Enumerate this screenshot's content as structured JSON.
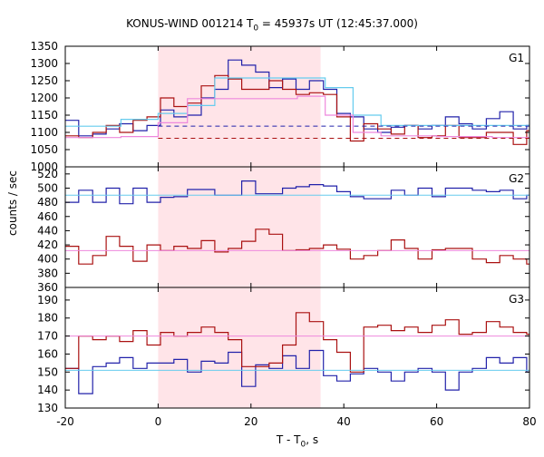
{
  "title": {
    "text_main": "KONUS-WIND 001214 T",
    "text_sub": "0",
    "text_rest": " = 45937s UT (12:45:37.000)"
  },
  "xlabel": {
    "main": "T - T",
    "sub": "0",
    "rest": ", s"
  },
  "ylabel": "counts / sec",
  "colors": {
    "blue": "#2222aa",
    "red": "#aa1111",
    "cyan": "#66ccee",
    "pink": "#ee88dd",
    "shade": "#ffe4e8"
  },
  "chart_data": {
    "type": "line",
    "x_range": [
      -20,
      80
    ],
    "x_ticks": [
      -20,
      0,
      20,
      40,
      60,
      80
    ],
    "shaded_interval": [
      0,
      35
    ],
    "panels": [
      {
        "label": "G1",
        "ylim": [
          1000,
          1350
        ],
        "y_ticks": [
          1000,
          1050,
          1100,
          1150,
          1200,
          1250,
          1300,
          1350
        ],
        "series": [
          {
            "style": "blue-step",
            "x": [
              -20,
              -17.1,
              -14.1,
              -11.2,
              -8.3,
              -5.4,
              -2.4,
              0.5,
              3.4,
              6.3,
              9.3,
              12.2,
              15.1,
              18.0,
              21.0,
              23.9,
              26.8,
              29.7,
              32.6,
              35.6,
              38.5,
              41.4,
              44.3,
              47.3,
              50.2,
              53.1,
              56.0,
              59.0,
              61.9,
              64.8,
              67.7,
              70.7,
              73.6,
              76.5,
              79.4
            ],
            "y": [
              1135,
              1090,
              1095,
              1110,
              1125,
              1105,
              1120,
              1165,
              1145,
              1150,
              1200,
              1225,
              1310,
              1295,
              1275,
              1230,
              1255,
              1225,
              1250,
              1225,
              1155,
              1145,
              1110,
              1100,
              1115,
              1120,
              1110,
              1120,
              1145,
              1125,
              1110,
              1140,
              1160,
              1110,
              1120
            ]
          },
          {
            "style": "red-step",
            "x": [
              -20,
              -17.1,
              -14.1,
              -11.2,
              -8.3,
              -5.4,
              -2.4,
              0.5,
              3.4,
              6.3,
              9.3,
              12.2,
              15.1,
              18.0,
              21.0,
              23.9,
              26.8,
              29.7,
              32.6,
              35.6,
              38.5,
              41.4,
              44.3,
              47.3,
              50.2,
              53.1,
              56.0,
              59.0,
              61.9,
              64.8,
              67.7,
              70.7,
              73.6,
              76.5,
              79.4
            ],
            "y": [
              1090,
              1085,
              1100,
              1120,
              1100,
              1135,
              1145,
              1200,
              1175,
              1185,
              1235,
              1265,
              1255,
              1225,
              1225,
              1250,
              1225,
              1210,
              1215,
              1210,
              1145,
              1075,
              1125,
              1110,
              1095,
              1120,
              1085,
              1090,
              1120,
              1085,
              1085,
              1100,
              1100,
              1065,
              1105
            ]
          },
          {
            "style": "cyan-step",
            "x": [
              -20,
              -12,
              -8,
              0,
              6.3,
              12.2,
              21.0,
              30,
              36,
              42,
              48,
              60,
              72,
              80
            ],
            "y": [
              1118,
              1118,
              1138,
              1155,
              1178,
              1258,
              1258,
              1258,
              1230,
              1150,
              1120,
              1120,
              1120,
              1120
            ]
          },
          {
            "style": "pink-step",
            "x": [
              -20,
              -12,
              -8,
              0,
              6.3,
              12.2,
              21.0,
              30,
              36,
              42,
              48,
              60,
              72,
              80
            ],
            "y": [
              1085,
              1085,
              1088,
              1128,
              1198,
              1198,
              1198,
              1205,
              1150,
              1100,
              1090,
              1088,
              1085,
              1085
            ]
          },
          {
            "style": "blue-dashed",
            "y_level": 1118,
            "x_from": 0,
            "x_to": 80
          },
          {
            "style": "red-dashed",
            "y_level": 1083,
            "x_from": 0,
            "x_to": 80
          }
        ]
      },
      {
        "label": "G2",
        "ylim": [
          360,
          530
        ],
        "y_ticks": [
          360,
          380,
          400,
          420,
          440,
          460,
          480,
          500,
          520
        ],
        "series": [
          {
            "style": "blue-step",
            "x": [
              -20,
              -17.1,
              -14.1,
              -11.2,
              -8.3,
              -5.4,
              -2.4,
              0.5,
              3.4,
              6.3,
              9.3,
              12.2,
              15.1,
              18.0,
              21.0,
              23.9,
              26.8,
              29.7,
              32.6,
              35.6,
              38.5,
              41.4,
              44.3,
              47.3,
              50.2,
              53.1,
              56.0,
              59.0,
              61.9,
              64.8,
              67.7,
              70.7,
              73.6,
              76.5,
              79.4
            ],
            "y": [
              480,
              497,
              480,
              500,
              478,
              500,
              480,
              487,
              488,
              498,
              498,
              490,
              490,
              510,
              492,
              492,
              500,
              502,
              505,
              503,
              495,
              488,
              485,
              485,
              497,
              490,
              500,
              488,
              500,
              500,
              497,
              495,
              497,
              485,
              490
            ]
          },
          {
            "style": "red-step",
            "x": [
              -20,
              -17.1,
              -14.1,
              -11.2,
              -8.3,
              -5.4,
              -2.4,
              0.5,
              3.4,
              6.3,
              9.3,
              12.2,
              15.1,
              18.0,
              21.0,
              23.9,
              26.8,
              29.7,
              32.6,
              35.6,
              38.5,
              41.4,
              44.3,
              47.3,
              50.2,
              53.1,
              56.0,
              59.0,
              61.9,
              64.8,
              67.7,
              70.7,
              73.6,
              76.5,
              79.4
            ],
            "y": [
              418,
              393,
              405,
              432,
              418,
              397,
              420,
              412,
              418,
              415,
              426,
              410,
              415,
              425,
              442,
              435,
              412,
              413,
              415,
              420,
              414,
              400,
              405,
              412,
              427,
              415,
              400,
              413,
              415,
              415,
              400,
              395,
              405,
              400,
              393
            ]
          },
          {
            "style": "cyan-flat",
            "y_level": 490,
            "x_from": -20,
            "x_to": 80
          },
          {
            "style": "pink-flat",
            "y_level": 412,
            "x_from": -20,
            "x_to": 80
          }
        ]
      },
      {
        "label": "G3",
        "ylim": [
          130,
          197
        ],
        "y_ticks": [
          130,
          140,
          150,
          160,
          170,
          180,
          190
        ],
        "series": [
          {
            "style": "blue-step",
            "x": [
              -20,
              -17.1,
              -14.1,
              -11.2,
              -8.3,
              -5.4,
              -2.4,
              0.5,
              3.4,
              6.3,
              9.3,
              12.2,
              15.1,
              18.0,
              21.0,
              23.9,
              26.8,
              29.7,
              32.6,
              35.6,
              38.5,
              41.4,
              44.3,
              47.3,
              50.2,
              53.1,
              56.0,
              59.0,
              61.9,
              64.8,
              67.7,
              70.7,
              73.6,
              76.5,
              79.4
            ],
            "y": [
              152,
              138,
              153,
              155,
              158,
              152,
              155,
              155,
              157,
              150,
              156,
              155,
              161,
              142,
              154,
              152,
              159,
              152,
              162,
              148,
              145,
              149,
              152,
              150,
              145,
              150,
              152,
              150,
              140,
              150,
              152,
              158,
              155,
              158,
              150
            ]
          },
          {
            "style": "red-step",
            "x": [
              -20,
              -17.1,
              -14.1,
              -11.2,
              -8.3,
              -5.4,
              -2.4,
              0.5,
              3.4,
              6.3,
              9.3,
              12.2,
              15.1,
              18.0,
              21.0,
              23.9,
              26.8,
              29.7,
              32.6,
              35.6,
              38.5,
              41.4,
              44.3,
              47.3,
              50.2,
              53.1,
              56.0,
              59.0,
              61.9,
              64.8,
              67.7,
              70.7,
              73.6,
              76.5,
              79.4
            ],
            "y": [
              152,
              170,
              168,
              170,
              167,
              173,
              165,
              172,
              170,
              172,
              175,
              172,
              168,
              153,
              153,
              155,
              165,
              183,
              178,
              168,
              161,
              150,
              175,
              176,
              173,
              175,
              172,
              176,
              179,
              171,
              172,
              178,
              175,
              172,
              171
            ]
          },
          {
            "style": "cyan-flat",
            "y_level": 151,
            "x_from": -20,
            "x_to": 80
          },
          {
            "style": "pink-flat",
            "y_level": 170,
            "x_from": -20,
            "x_to": 80
          }
        ]
      }
    ]
  }
}
